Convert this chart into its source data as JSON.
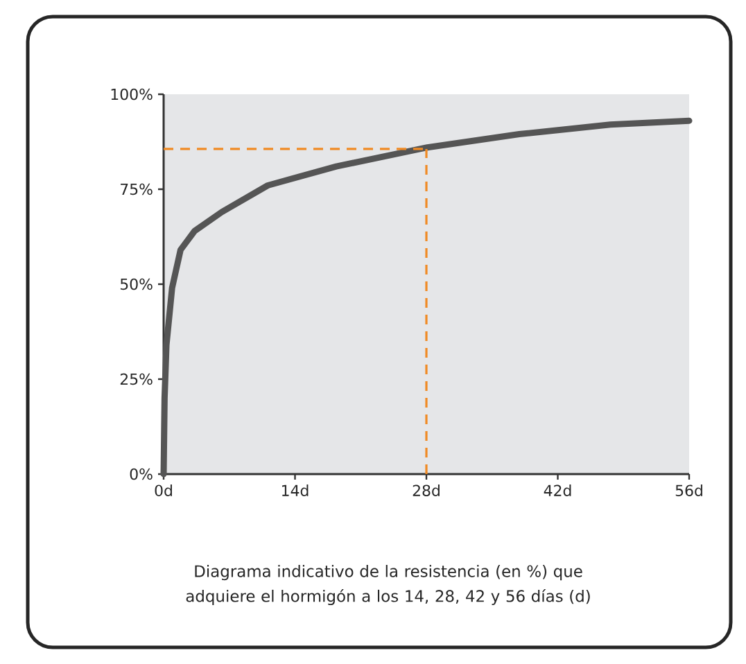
{
  "chart_data": {
    "type": "line",
    "x": [
      0,
      0.1,
      0.3,
      0.9,
      1.8,
      3.3,
      6.2,
      11.1,
      18.4,
      28.1,
      37.9,
      47.6,
      56
    ],
    "series": [
      {
        "color": "#555555",
        "values": [
          0,
          20,
          34,
          49,
          59,
          64,
          69,
          76,
          81,
          86,
          89.5,
          92,
          93
        ]
      }
    ],
    "xlim": [
      0,
      56
    ],
    "xticks": [
      {
        "value": 0,
        "label": "0d"
      },
      {
        "value": 14,
        "label": "14d"
      },
      {
        "value": 28,
        "label": "28d"
      },
      {
        "value": 42,
        "label": "42d"
      },
      {
        "value": 56,
        "label": "56d"
      }
    ],
    "ylim": [
      0,
      100
    ],
    "yticks": [
      {
        "value": 0,
        "label": "0%"
      },
      {
        "value": 25,
        "label": "25%"
      },
      {
        "value": 50,
        "label": "50%"
      },
      {
        "value": 75,
        "label": "75%"
      },
      {
        "value": 100,
        "label": "100%"
      }
    ],
    "ref_lines": [
      {
        "axis": "y",
        "value": 85.6,
        "color": "#f08a24",
        "line_style": "dashed"
      },
      {
        "axis": "x",
        "value": 28,
        "color": "#f08a24",
        "line_style": "dashed"
      }
    ],
    "annotations": [
      "Diagrama indicativo de la resistencia (en %) que adquiere el hormigón a los 14, 28, 42 y 56 días (d)"
    ],
    "grid": false,
    "marker": "none",
    "line_style": "solid"
  }
}
